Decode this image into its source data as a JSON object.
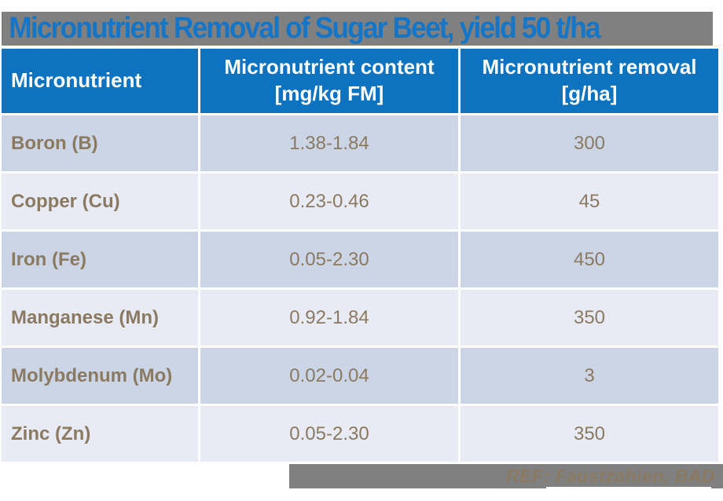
{
  "slide": {
    "title": "Micronutrient Removal of Sugar Beet, yield 50 t/ha"
  },
  "table": {
    "headers": {
      "micronutrient": "Micronutrient",
      "content": "Micronutrient content\n[mg/kg FM]",
      "removal": "Micronutrient removal\n[g/ha]"
    },
    "rows": [
      {
        "name": "Boron (B)",
        "content": "1.38-1.84",
        "removal": "300"
      },
      {
        "name": "Copper (Cu)",
        "content": "0.23-0.46",
        "removal": "45"
      },
      {
        "name": "Iron (Fe)",
        "content": "0.05-2.30",
        "removal": "450"
      },
      {
        "name": "Manganese (Mn)",
        "content": "0.92-1.84",
        "removal": "350"
      },
      {
        "name": "Molybdenum (Mo)",
        "content": "0.02-0.04",
        "removal": "3"
      },
      {
        "name": "Zinc (Zn)",
        "content": "0.05-2.30",
        "removal": "350"
      }
    ]
  },
  "footer": {
    "reference": "REF: Faustzahien, BAD"
  },
  "colors": {
    "header_blue": "#0d72c0",
    "title_blue": "#1576c8",
    "bar_gray": "#808080",
    "row_dark": "#cbd5e6",
    "row_light": "#e8ebf4",
    "text_brown": "#8b7a62"
  }
}
